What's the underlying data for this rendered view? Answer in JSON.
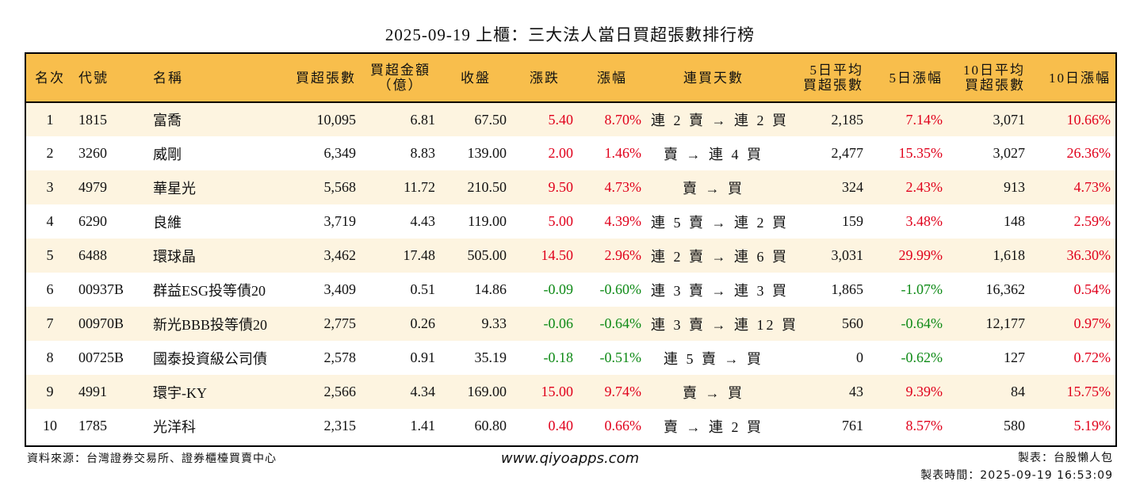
{
  "title": "2025-09-19 上櫃：三大法人當日買超張數排行榜",
  "colors": {
    "header_bg": "#f8be4c",
    "row_alt_bg": "#fdf4e0",
    "up": "#e0001b",
    "down": "#0e8a16"
  },
  "columns": {
    "rank": "名次",
    "code": "代號",
    "name": "名稱",
    "net_buy_lots": "買超張數",
    "net_buy_amount_1": "買超金額",
    "net_buy_amount_2": "（億）",
    "close": "收盤",
    "change": "漲跌",
    "change_pct": "漲幅",
    "streak": "連買天數",
    "avg5_1": "5日平均",
    "avg5_2": "買超張數",
    "pct5": "5日漲幅",
    "avg10_1": "10日平均",
    "avg10_2": "買超張數",
    "pct10": "10日漲幅"
  },
  "rows": [
    {
      "rank": "1",
      "code": "1815",
      "name": "富喬",
      "lots": "10,095",
      "amount": "6.81",
      "close": "67.50",
      "change": "5.40",
      "change_pct": "8.70%",
      "streak": "連 2 賣 → 連 2 買",
      "avg5": "2,185",
      "pct5": "7.14%",
      "avg10": "3,071",
      "pct10": "10.66%"
    },
    {
      "rank": "2",
      "code": "3260",
      "name": "威剛",
      "lots": "6,349",
      "amount": "8.83",
      "close": "139.00",
      "change": "2.00",
      "change_pct": "1.46%",
      "streak": "賣 → 連 4 買",
      "avg5": "2,477",
      "pct5": "15.35%",
      "avg10": "3,027",
      "pct10": "26.36%"
    },
    {
      "rank": "3",
      "code": "4979",
      "name": "華星光",
      "lots": "5,568",
      "amount": "11.72",
      "close": "210.50",
      "change": "9.50",
      "change_pct": "4.73%",
      "streak": "賣 → 買",
      "avg5": "324",
      "pct5": "2.43%",
      "avg10": "913",
      "pct10": "4.73%"
    },
    {
      "rank": "4",
      "code": "6290",
      "name": "良維",
      "lots": "3,719",
      "amount": "4.43",
      "close": "119.00",
      "change": "5.00",
      "change_pct": "4.39%",
      "streak": "連 5 賣 → 連 2 買",
      "avg5": "159",
      "pct5": "3.48%",
      "avg10": "148",
      "pct10": "2.59%"
    },
    {
      "rank": "5",
      "code": "6488",
      "name": "環球晶",
      "lots": "3,462",
      "amount": "17.48",
      "close": "505.00",
      "change": "14.50",
      "change_pct": "2.96%",
      "streak": "連 2 賣 → 連 6 買",
      "avg5": "3,031",
      "pct5": "29.99%",
      "avg10": "1,618",
      "pct10": "36.30%"
    },
    {
      "rank": "6",
      "code": "00937B",
      "name": "群益ESG投等債20",
      "lots": "3,409",
      "amount": "0.51",
      "close": "14.86",
      "change": "-0.09",
      "change_pct": "-0.60%",
      "streak": "連 3 賣 → 連 3 買",
      "avg5": "1,865",
      "pct5": "-1.07%",
      "avg10": "16,362",
      "pct10": "0.54%"
    },
    {
      "rank": "7",
      "code": "00970B",
      "name": "新光BBB投等債20",
      "lots": "2,775",
      "amount": "0.26",
      "close": "9.33",
      "change": "-0.06",
      "change_pct": "-0.64%",
      "streak": "連 3 賣 → 連 12 買",
      "avg5": "560",
      "pct5": "-0.64%",
      "avg10": "12,177",
      "pct10": "0.97%"
    },
    {
      "rank": "8",
      "code": "00725B",
      "name": "國泰投資級公司債",
      "lots": "2,578",
      "amount": "0.91",
      "close": "35.19",
      "change": "-0.18",
      "change_pct": "-0.51%",
      "streak": "連 5 賣 → 買",
      "avg5": "0",
      "pct5": "-0.62%",
      "avg10": "127",
      "pct10": "0.72%"
    },
    {
      "rank": "9",
      "code": "4991",
      "name": "環宇-KY",
      "lots": "2,566",
      "amount": "4.34",
      "close": "169.00",
      "change": "15.00",
      "change_pct": "9.74%",
      "streak": "賣 → 買",
      "avg5": "43",
      "pct5": "9.39%",
      "avg10": "84",
      "pct10": "15.75%"
    },
    {
      "rank": "10",
      "code": "1785",
      "name": "光洋科",
      "lots": "2,315",
      "amount": "1.41",
      "close": "60.80",
      "change": "0.40",
      "change_pct": "0.66%",
      "streak": "賣 → 連 2 買",
      "avg5": "761",
      "pct5": "8.57%",
      "avg10": "580",
      "pct10": "5.19%"
    }
  ],
  "footer": {
    "source": "資料來源：台灣證券交易所、證券櫃檯買賣中心",
    "website": "www.qiyoapps.com",
    "author": "製表：台股懶人包",
    "timestamp": "製表時間：2025-09-19 16:53:09"
  }
}
